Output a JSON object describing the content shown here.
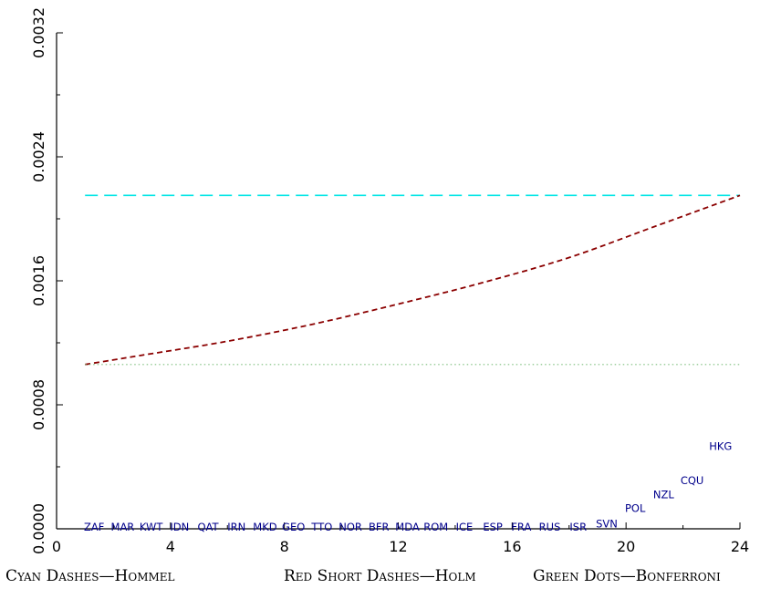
{
  "chart_data": {
    "type": "scatter",
    "x": [
      1,
      2,
      3,
      4,
      5,
      6,
      7,
      8,
      9,
      10,
      11,
      12,
      13,
      14,
      15,
      16,
      17,
      18,
      19,
      20,
      21,
      22,
      23
    ],
    "point_labels": [
      "ZAF",
      "MAR",
      "KWT",
      "IDN",
      "QAT",
      "IRN",
      "MKD",
      "GEO",
      "TTO",
      "NOR",
      "BFR",
      "MDA",
      "ROM",
      "ICE",
      "ESP",
      "FRA",
      "RUS",
      "ISR",
      "SVN",
      "POL",
      "NZL",
      "CQU",
      "HKG"
    ],
    "y": [
      0,
      0,
      0,
      0,
      0,
      0,
      0,
      0,
      0,
      0,
      0,
      0,
      0,
      0,
      0,
      0,
      0,
      0,
      2e-05,
      0.00012,
      0.00021,
      0.0003,
      0.00052
    ],
    "xlim": [
      0,
      24
    ],
    "ylim": [
      0,
      0.0032
    ],
    "xticks": [
      "0",
      "4",
      "8",
      "12",
      "16",
      "20",
      "24"
    ],
    "yticks": [
      "0.0000",
      "0.0008",
      "0.0016",
      "0.0024",
      "0.0032"
    ],
    "series": [
      {
        "name": "Hommel",
        "style": "cyan long dashes",
        "color": "#00e5e5",
        "x": [
          1,
          24
        ],
        "y": [
          0.002151,
          0.002151
        ]
      },
      {
        "name": "Holm",
        "style": "red short dashes",
        "color": "#8b0000",
        "x": [
          1,
          3,
          6,
          9,
          12,
          15,
          18,
          21,
          24
        ],
        "y": [
          0.00106,
          0.00112,
          0.00121,
          0.00132,
          0.00145,
          0.00159,
          0.00175,
          0.00195,
          0.002151
        ]
      },
      {
        "name": "Bonferroni",
        "style": "green dots",
        "color": "#7fbf7f",
        "x": [
          1,
          24
        ],
        "y": [
          0.00106,
          0.00106
        ]
      }
    ]
  },
  "caption": {
    "hommel": "Cyan Dashes—Hommel",
    "holm": "Red Short Dashes—Holm",
    "bonferroni": "Green Dots—Bonferroni"
  }
}
